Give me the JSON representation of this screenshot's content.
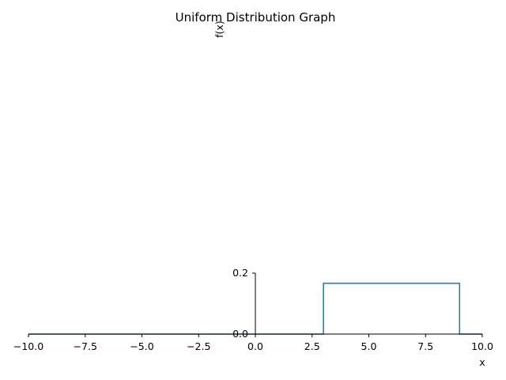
{
  "chart_data": {
    "type": "line",
    "title": "Uniform Distribution Graph",
    "xlabel": "x",
    "ylabel": "f(x)",
    "xlim": [
      -10,
      10
    ],
    "ylim": [
      0,
      0.2
    ],
    "x_ticks": [
      -10,
      -7.5,
      -5,
      -2.5,
      0,
      2.5,
      5,
      7.5,
      10
    ],
    "x_tick_labels": [
      "−10.0",
      "−7.5",
      "−5.0",
      "−2.5",
      "0.0",
      "2.5",
      "5.0",
      "7.5",
      "10.0"
    ],
    "y_ticks": [
      0,
      0.2
    ],
    "y_tick_labels": [
      "0.0",
      "0.2"
    ],
    "grid": false,
    "series": [
      {
        "name": "f(x)",
        "color": "#1f77b4",
        "x": [
          -10,
          3,
          3,
          9,
          9,
          10
        ],
        "y": [
          0,
          0,
          0.1667,
          0.1667,
          0,
          0
        ]
      }
    ]
  }
}
